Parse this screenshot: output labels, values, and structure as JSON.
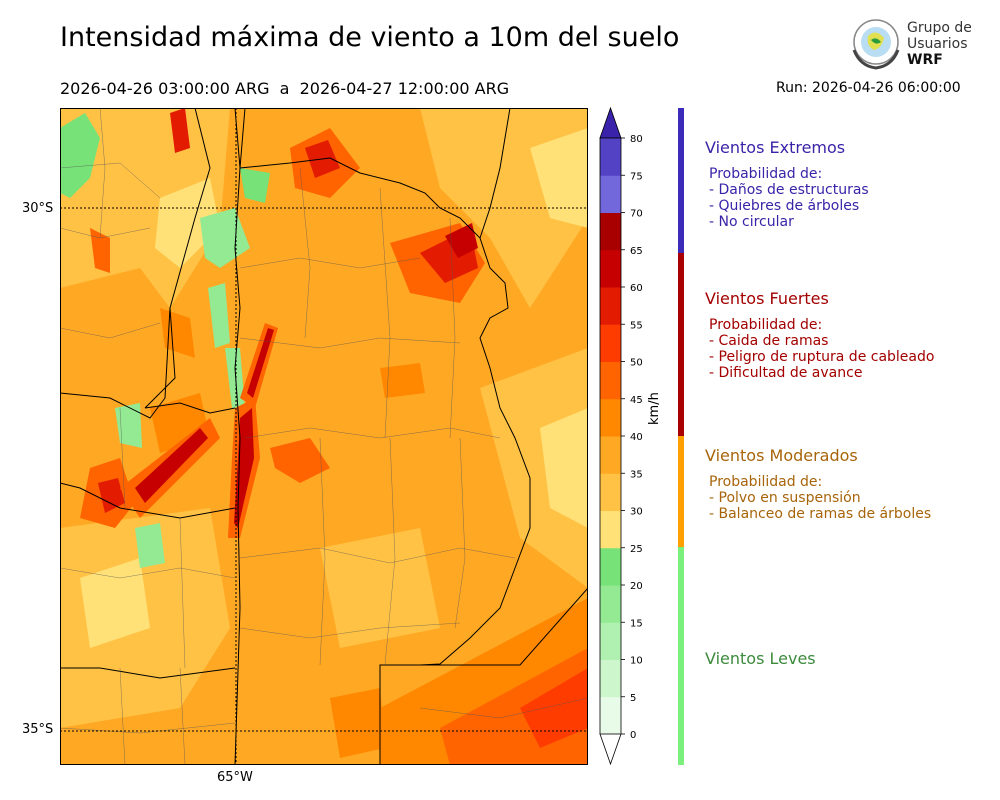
{
  "header": {
    "title": "Intensidad máxima de viento a 10m del suelo",
    "period": "2026-04-26 03:00:00 ARG  a  2026-04-27 12:00:00 ARG",
    "run": "Run: 2026-04-26 06:00:00"
  },
  "logo": {
    "line1": "Grupo de",
    "line2": "Usuarios",
    "line3": "WRF"
  },
  "map": {
    "lat_labels": [
      "30°S",
      "35°S"
    ],
    "lon_labels": [
      "65°W"
    ],
    "extent_lon": [
      -66.6,
      -61.7
    ],
    "extent_lat": [
      -35.3,
      -29.0
    ]
  },
  "colorbar": {
    "units": "km/h",
    "ticks": [
      0,
      5,
      10,
      15,
      20,
      25,
      30,
      35,
      40,
      45,
      50,
      55,
      60,
      65,
      70,
      75,
      80
    ],
    "colors": [
      "#e8fbe8",
      "#cdf6cd",
      "#b0f0b0",
      "#93ea93",
      "#77e277",
      "#ffe178",
      "#ffc245",
      "#ffa824",
      "#ff8800",
      "#ff6400",
      "#ff3c00",
      "#e31b00",
      "#c60000",
      "#a80000",
      "#7367dc",
      "#5342c4",
      "#3a22aa"
    ],
    "extend_low_color": "#ffffff",
    "extend_high_color": "#3a22aa"
  },
  "categories": [
    {
      "id": "extremos",
      "title": "Vientos Extremos",
      "color": "#3b23a8",
      "desc": [
        "Probabilidad de:",
        "- Daños de estructuras",
        "- Quiebres de árboles",
        "- No circular"
      ]
    },
    {
      "id": "fuertes",
      "title": "Vientos Fuertes",
      "color": "#a30000",
      "desc": [
        "Probabilidad de:",
        "- Caida de ramas",
        "- Peligro de ruptura de cableado",
        "- Dificultad de avance"
      ]
    },
    {
      "id": "moderados",
      "title": "Vientos Moderados",
      "color": "#a8640a",
      "desc": [
        "Probabilidad de:",
        "- Polvo en suspensión",
        "- Balanceo de ramas de árboles"
      ]
    },
    {
      "id": "leves",
      "title": "Vientos Leves",
      "color": "#3c8a3c",
      "desc": []
    }
  ],
  "category_bar_colors": [
    "#3c2ab8",
    "#a80000",
    "#ffa000",
    "#7cf07c"
  ]
}
